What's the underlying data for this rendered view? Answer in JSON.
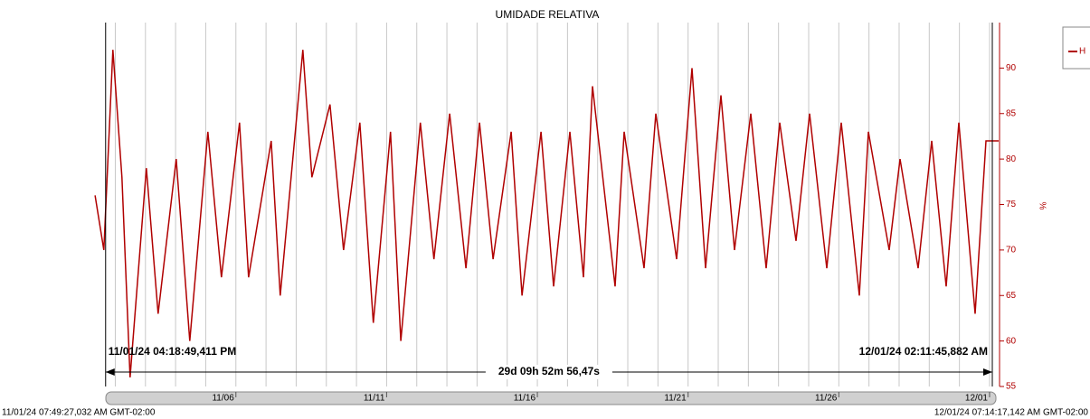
{
  "chart_data": {
    "type": "line",
    "title": "UMIDADE RELATIVA",
    "y_label": "%",
    "start_label": "11/01/24 07:49:27,032 AM GMT-02:00",
    "end_label": "12/01/24 07:14:17,142 AM GMT-02:00",
    "cursors": [
      {
        "x": 0.679,
        "label": "11/01/24 04:18:49,411 PM"
      },
      {
        "x": 30.091,
        "label": "12/01/24 02:11:45,882 AM"
      }
    ],
    "span_label": "29d 09h 52m 56,47s",
    "xlim": [
      0.326,
      30.301
    ],
    "xticks": [
      {
        "value": 5,
        "label": "11/06"
      },
      {
        "value": 10,
        "label": "11/11"
      },
      {
        "value": 15,
        "label": "11/16"
      },
      {
        "value": 20,
        "label": "11/21"
      },
      {
        "value": 25,
        "label": "11/26"
      },
      {
        "value": 30,
        "label": "12/01"
      }
    ],
    "xminorticks": [
      1,
      2,
      3,
      4,
      5,
      6,
      7,
      8,
      9,
      10,
      11,
      12,
      13,
      14,
      15,
      16,
      17,
      18,
      19,
      20,
      21,
      22,
      23,
      24,
      25,
      26,
      27,
      28,
      29,
      30
    ],
    "ylim": [
      55,
      95
    ],
    "yticks": [
      55,
      60,
      65,
      70,
      75,
      80,
      85,
      90
    ],
    "grid": true,
    "legend": "top-right",
    "x": [
      0.33,
      0.62,
      0.92,
      1.22,
      1.49,
      2.03,
      2.42,
      3.02,
      3.47,
      4.07,
      4.52,
      5.12,
      5.42,
      6.17,
      6.47,
      7.22,
      7.52,
      8.12,
      8.57,
      9.11,
      9.56,
      10.13,
      10.47,
      11.12,
      11.57,
      12.09,
      12.63,
      13.08,
      13.53,
      14.13,
      14.49,
      15.12,
      15.54,
      16.08,
      16.53,
      16.83,
      17.58,
      17.88,
      18.54,
      18.93,
      19.62,
      20.13,
      20.58,
      21.09,
      21.54,
      22.08,
      22.59,
      23.04,
      23.58,
      24.03,
      24.6,
      25.08,
      25.68,
      25.98,
      26.67,
      27.03,
      27.63,
      28.08,
      28.56,
      28.98,
      29.52,
      29.88,
      30.3
    ],
    "series": [
      {
        "name": "H",
        "color": "#b00000",
        "values": [
          76,
          70,
          92,
          78,
          56,
          79,
          63,
          80,
          60,
          83,
          67,
          84,
          67,
          82,
          65,
          92,
          78,
          86,
          70,
          84,
          62,
          83,
          60,
          84,
          69,
          85,
          68,
          84,
          69,
          83,
          65,
          83,
          66,
          83,
          67,
          88,
          66,
          83,
          68,
          85,
          69,
          90,
          68,
          87,
          70,
          85,
          68,
          84,
          71,
          85,
          68,
          84,
          65,
          83,
          70,
          80,
          68,
          82,
          66,
          84,
          63,
          82,
          82
        ]
      }
    ]
  }
}
